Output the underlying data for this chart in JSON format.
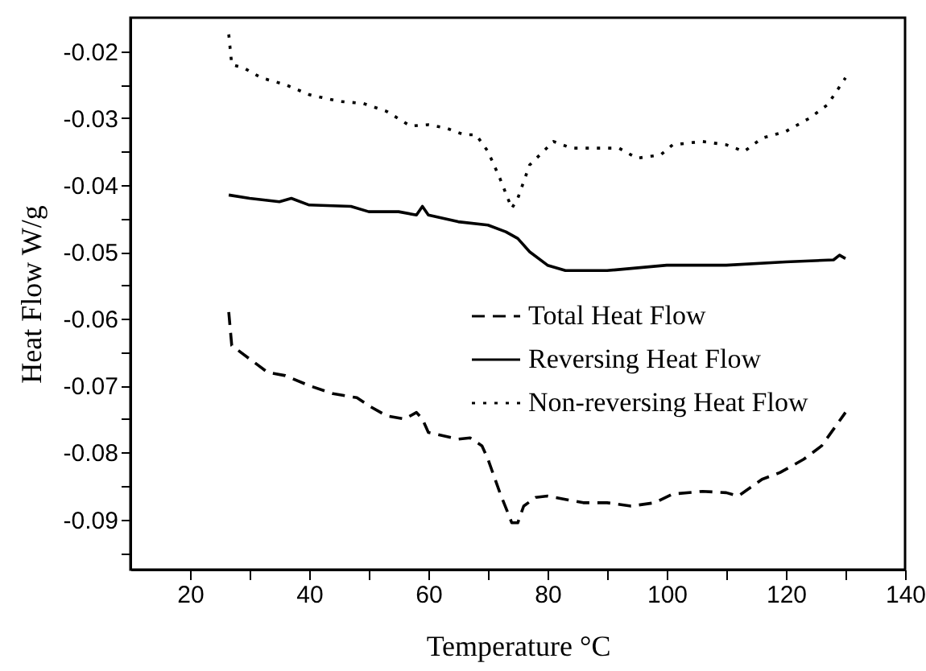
{
  "chart_data": {
    "type": "line",
    "xlabel": "Temperature °C",
    "ylabel": "Heat Flow W/g",
    "xlim": [
      10,
      140
    ],
    "xticks": [
      20,
      {
        "value": 30,
        "label": null
      },
      40,
      {
        "value": 50,
        "label": null
      },
      60,
      {
        "value": 70,
        "label": null
      },
      80,
      {
        "value": 90,
        "label": null
      },
      100,
      {
        "value": 110,
        "label": null
      },
      120,
      {
        "value": 130,
        "label": null
      },
      140
    ],
    "ylim": [
      -0.0975,
      -0.015
    ],
    "yticks": [
      -0.02,
      {
        "value": -0.025,
        "label": null
      },
      -0.03,
      {
        "value": -0.035,
        "label": null
      },
      -0.04,
      {
        "value": -0.045,
        "label": null
      },
      -0.05,
      {
        "value": -0.055,
        "label": null
      },
      -0.06,
      {
        "value": -0.065,
        "label": null
      },
      -0.07,
      {
        "value": -0.075,
        "label": null
      },
      -0.08,
      {
        "value": -0.085,
        "label": null
      },
      -0.09,
      {
        "value": -0.095,
        "label": null
      }
    ],
    "grid": false,
    "legend": "right",
    "marker": "none",
    "series": [
      {
        "name": "Total Heat Flow",
        "color": "#000000",
        "line_style": "dashed",
        "x": [
          26.5,
          27,
          30,
          33,
          36,
          40,
          44,
          48,
          50,
          53,
          56,
          58,
          59,
          60,
          65,
          67,
          69,
          70,
          72,
          74,
          75,
          76,
          78,
          80,
          83,
          86,
          90,
          94,
          98,
          101,
          106,
          110,
          112,
          116,
          119,
          123,
          126,
          130
        ],
        "values": [
          -0.059,
          -0.064,
          -0.066,
          -0.068,
          -0.0685,
          -0.07,
          -0.0712,
          -0.0718,
          -0.073,
          -0.0745,
          -0.075,
          -0.074,
          -0.075,
          -0.077,
          -0.078,
          -0.0778,
          -0.079,
          -0.081,
          -0.086,
          -0.0905,
          -0.0905,
          -0.088,
          -0.0867,
          -0.0865,
          -0.087,
          -0.0875,
          -0.0875,
          -0.088,
          -0.0875,
          -0.0862,
          -0.0858,
          -0.086,
          -0.0865,
          -0.084,
          -0.083,
          -0.081,
          -0.079,
          -0.074
        ]
      },
      {
        "name": "Reversing Heat Flow",
        "color": "#000000",
        "line_style": "solid",
        "x": [
          26.5,
          30,
          35,
          37,
          40,
          47,
          50,
          55,
          58,
          59,
          60,
          65,
          70,
          73,
          75,
          77,
          80,
          83,
          90,
          100,
          110,
          120,
          128,
          129,
          130
        ],
        "values": [
          -0.0415,
          -0.042,
          -0.0425,
          -0.042,
          -0.043,
          -0.0432,
          -0.044,
          -0.044,
          -0.0445,
          -0.0432,
          -0.0445,
          -0.0455,
          -0.046,
          -0.047,
          -0.048,
          -0.05,
          -0.052,
          -0.0528,
          -0.0528,
          -0.052,
          -0.052,
          -0.0515,
          -0.0512,
          -0.0505,
          -0.051
        ]
      },
      {
        "name": "Non-reversing Heat Flow",
        "color": "#000000",
        "line_style": "dotted",
        "x": [
          26.5,
          27,
          29,
          32,
          36,
          40,
          45,
          49,
          53,
          57,
          60,
          63,
          66,
          68,
          70,
          72,
          74,
          75,
          77,
          81,
          84,
          88,
          92,
          95,
          99,
          101,
          106,
          110,
          113,
          116,
          120,
          124,
          127,
          130
        ],
        "values": [
          -0.0175,
          -0.022,
          -0.0225,
          -0.024,
          -0.025,
          -0.0265,
          -0.0275,
          -0.0278,
          -0.029,
          -0.0312,
          -0.031,
          -0.0315,
          -0.0325,
          -0.0325,
          -0.035,
          -0.039,
          -0.0435,
          -0.042,
          -0.037,
          -0.0335,
          -0.0345,
          -0.0345,
          -0.0345,
          -0.036,
          -0.0355,
          -0.034,
          -0.0335,
          -0.034,
          -0.035,
          -0.033,
          -0.032,
          -0.03,
          -0.028,
          -0.024
        ]
      }
    ]
  }
}
